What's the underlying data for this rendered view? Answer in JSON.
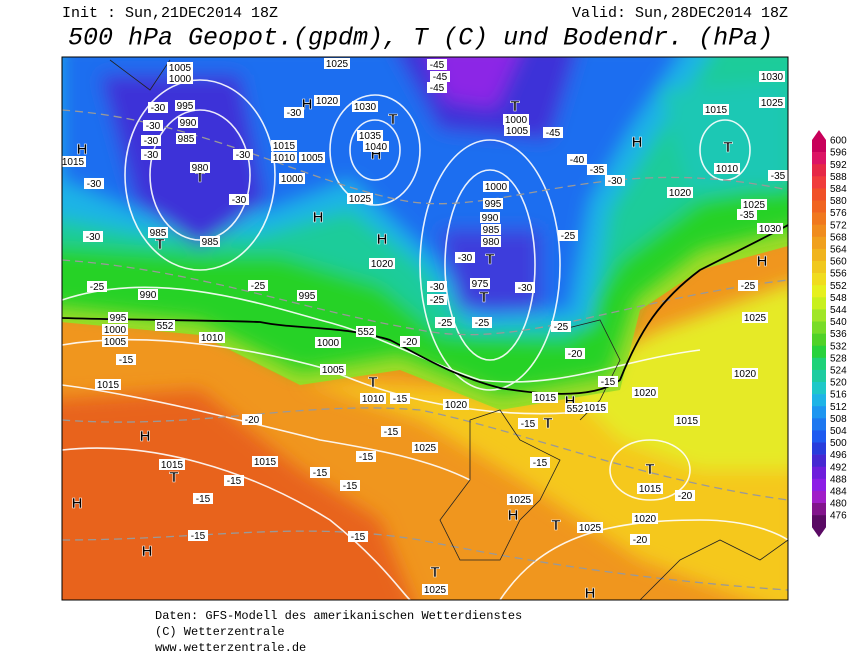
{
  "header": {
    "init": "Init : Sun,21DEC2014 18Z",
    "valid": "Valid: Sun,28DEC2014 18Z",
    "title": "500 hPa Geopot.(gpdm), T (C) und Bodendr. (hPa)"
  },
  "legend": {
    "values": [
      600,
      596,
      592,
      588,
      584,
      580,
      576,
      572,
      568,
      564,
      560,
      556,
      552,
      548,
      544,
      540,
      536,
      532,
      528,
      524,
      520,
      516,
      512,
      508,
      504,
      500,
      496,
      492,
      488,
      484,
      480,
      476
    ]
  },
  "map": {
    "labels": [
      "H",
      "T",
      "H",
      "T",
      "H",
      "H",
      "H",
      "T",
      "T",
      "H",
      "T",
      "T",
      "T",
      "H",
      "T",
      "H",
      "T",
      "H",
      "H",
      "H",
      "T",
      "T",
      "H",
      "T",
      "T",
      "H",
      "1005",
      "1000",
      "995",
      "990",
      "985",
      "980",
      "1015",
      "985",
      "985",
      "990",
      "995",
      "1000",
      "1005",
      "1010",
      "1015",
      "1025",
      "1020",
      "1030",
      "1035",
      "1040",
      "1015",
      "1010",
      "1005",
      "1000",
      "1025",
      "1020",
      "995",
      "1000",
      "1005",
      "1010",
      "1020",
      "1000",
      "1005",
      "1015",
      "1010",
      "1020",
      "1025",
      "1030",
      "1000",
      "995",
      "990",
      "985",
      "980",
      "975",
      "1015",
      "1015",
      "1020",
      "1015",
      "1025",
      "1020",
      "1015",
      "1020",
      "1025",
      "1025",
      "1025",
      "1015",
      "1015",
      "1025",
      "1030",
      "1025",
      "-45",
      "-45",
      "-45",
      "-45",
      "-40",
      "-35",
      "-30",
      "-35",
      "-35",
      "-30",
      "-30",
      "-30",
      "-30",
      "-30",
      "-30",
      "-30",
      "-25",
      "-25",
      "-30",
      "-30",
      "-30",
      "-30",
      "-30",
      "-25",
      "-25",
      "-25",
      "-25",
      "-20",
      "-20",
      "-15",
      "-15",
      "-15",
      "-20",
      "-15",
      "-15",
      "-15",
      "-15",
      "-15",
      "-15",
      "-15",
      "-15",
      "-15",
      "-15",
      "-20",
      "-20",
      "-25",
      "-25",
      "552",
      "552",
      "552"
    ]
  },
  "footer": {
    "lines": [
      "Daten: GFS-Modell des amerikanischen Wetterdienstes",
      "(C) Wetterzentrale",
      "www.wetterzentrale.de"
    ]
  }
}
